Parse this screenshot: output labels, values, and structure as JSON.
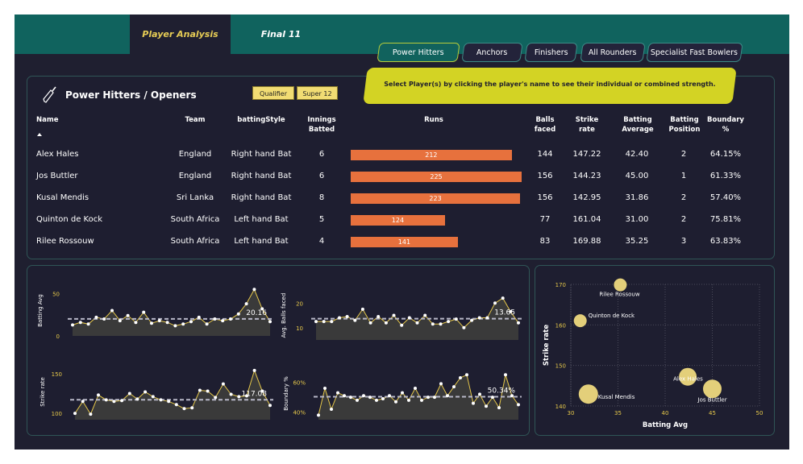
{
  "tabs": [
    {
      "label": "Player Analysis"
    },
    {
      "label": "Final 11"
    }
  ],
  "filters": [
    "Power Hitters",
    "Anchors",
    "Finishers",
    "All Rounders",
    "Specialist Fast Bowlers"
  ],
  "instruction": "Select Player(s) by clicking the player's name to see their individual or combined strength.",
  "panel": {
    "title": "Power Hitters / Openers",
    "stage_buttons": [
      "Qualifier",
      "Super 12"
    ]
  },
  "table": {
    "headers": {
      "name": "Name",
      "team": "Team",
      "style": "battingStyle",
      "innings": "Innings Batted",
      "runs": "Runs",
      "balls": "Balls faced",
      "sr": "Strike rate",
      "avg": "Batting Average",
      "pos": "Batting Position",
      "boundary": "Boundary %"
    },
    "rows": [
      {
        "name": "Alex Hales",
        "team": "England",
        "style": "Right hand Bat",
        "innings": "6",
        "runs": 212,
        "balls": "144",
        "sr": "147.22",
        "avg": "42.40",
        "pos": "2",
        "boundary": "64.15%"
      },
      {
        "name": "Jos Buttler",
        "team": "England",
        "style": "Right hand Bat",
        "innings": "6",
        "runs": 225,
        "balls": "156",
        "sr": "144.23",
        "avg": "45.00",
        "pos": "1",
        "boundary": "61.33%"
      },
      {
        "name": "Kusal Mendis",
        "team": "Sri Lanka",
        "style": "Right hand Bat",
        "innings": "8",
        "runs": 223,
        "balls": "156",
        "sr": "142.95",
        "avg": "31.86",
        "pos": "2",
        "boundary": "57.40%"
      },
      {
        "name": "Quinton de Kock",
        "team": "South Africa",
        "style": "Left hand Bat",
        "innings": "5",
        "runs": 124,
        "balls": "77",
        "sr": "161.04",
        "avg": "31.00",
        "pos": "2",
        "boundary": "75.81%"
      },
      {
        "name": "Rilee Rossouw",
        "team": "South Africa",
        "style": "Left hand Bat",
        "innings": "4",
        "runs": 141,
        "balls": "83",
        "sr": "169.88",
        "avg": "35.25",
        "pos": "3",
        "boundary": "63.83%"
      }
    ]
  },
  "chart_data": [
    {
      "type": "line",
      "title": "",
      "ylabel": "Batting Avg",
      "ylim": [
        0,
        60
      ],
      "yticks": [
        {
          "v": 0,
          "label": "0"
        },
        {
          "v": 50,
          "label": "50"
        }
      ],
      "avg": 20.16,
      "avg_label": "20.16",
      "values": [
        13,
        16,
        14,
        22,
        20,
        30,
        18,
        24,
        16,
        28,
        15,
        18,
        16,
        12,
        14,
        17,
        22,
        14,
        20,
        18,
        20,
        26,
        38,
        55,
        32,
        17
      ]
    },
    {
      "type": "line",
      "title": "",
      "ylabel": "Avg. Balls faced",
      "ylim": [
        5,
        25
      ],
      "yticks": [
        {
          "v": 10,
          "label": "10"
        },
        {
          "v": 20,
          "label": "20"
        }
      ],
      "avg": 13.65,
      "avg_label": "13.65",
      "values": [
        12.5,
        12.5,
        12.5,
        14,
        14.5,
        13,
        17.5,
        12,
        14.5,
        12,
        15,
        11,
        14,
        12,
        15,
        11.5,
        11.5,
        12.5,
        13.5,
        10,
        13,
        14,
        14,
        20,
        22,
        16.5,
        12
      ]
    },
    {
      "type": "line",
      "title": "",
      "ylabel": "Strike rate",
      "ylim": [
        92,
        162
      ],
      "yticks": [
        {
          "v": 100,
          "label": "100"
        },
        {
          "v": 150,
          "label": "150"
        }
      ],
      "avg": 117.08,
      "avg_label": "117.08",
      "values": [
        100,
        115,
        99,
        123,
        117,
        115,
        116,
        125,
        118,
        127,
        121,
        117,
        115,
        111,
        106,
        107,
        129,
        128,
        120,
        137,
        124,
        121,
        122,
        154,
        128,
        110
      ]
    },
    {
      "type": "line",
      "title": "",
      "ylabel": "Boundary %",
      "ylim": [
        35,
        70
      ],
      "yticks": [
        {
          "v": 40,
          "label": "40%"
        },
        {
          "v": 60,
          "label": "60%"
        }
      ],
      "avg": 50.34,
      "avg_label": "50.34%",
      "values": [
        38,
        56,
        42,
        53,
        51,
        50,
        48,
        51,
        50,
        48,
        49,
        51,
        47,
        53,
        48,
        56,
        48,
        50,
        50,
        59,
        51,
        57,
        63,
        65,
        46,
        52,
        44,
        50,
        43,
        65,
        51,
        45
      ]
    },
    {
      "type": "scatter",
      "xlabel": "Batting Avg",
      "ylabel": "Strike rate",
      "xlim": [
        30,
        50
      ],
      "ylim": [
        140,
        170
      ],
      "xticks": [
        30,
        35,
        40,
        45,
        50
      ],
      "yticks": [
        140,
        150,
        160,
        170
      ],
      "points": [
        {
          "label": "Rilee Rossouw",
          "x": 35.25,
          "y": 169.88
        },
        {
          "label": "Quinton de Kock",
          "x": 31.0,
          "y": 161.04
        },
        {
          "label": "Kusal Mendis",
          "x": 31.86,
          "y": 142.95
        },
        {
          "label": "Alex Hales",
          "x": 42.4,
          "y": 147.22
        },
        {
          "label": "Jos Buttler",
          "x": 45.0,
          "y": 144.23
        }
      ]
    }
  ],
  "colors": {
    "accent": "#e7713d",
    "line": "#e6c84a",
    "bg": "#1f1f30",
    "topbar": "#10635e"
  }
}
